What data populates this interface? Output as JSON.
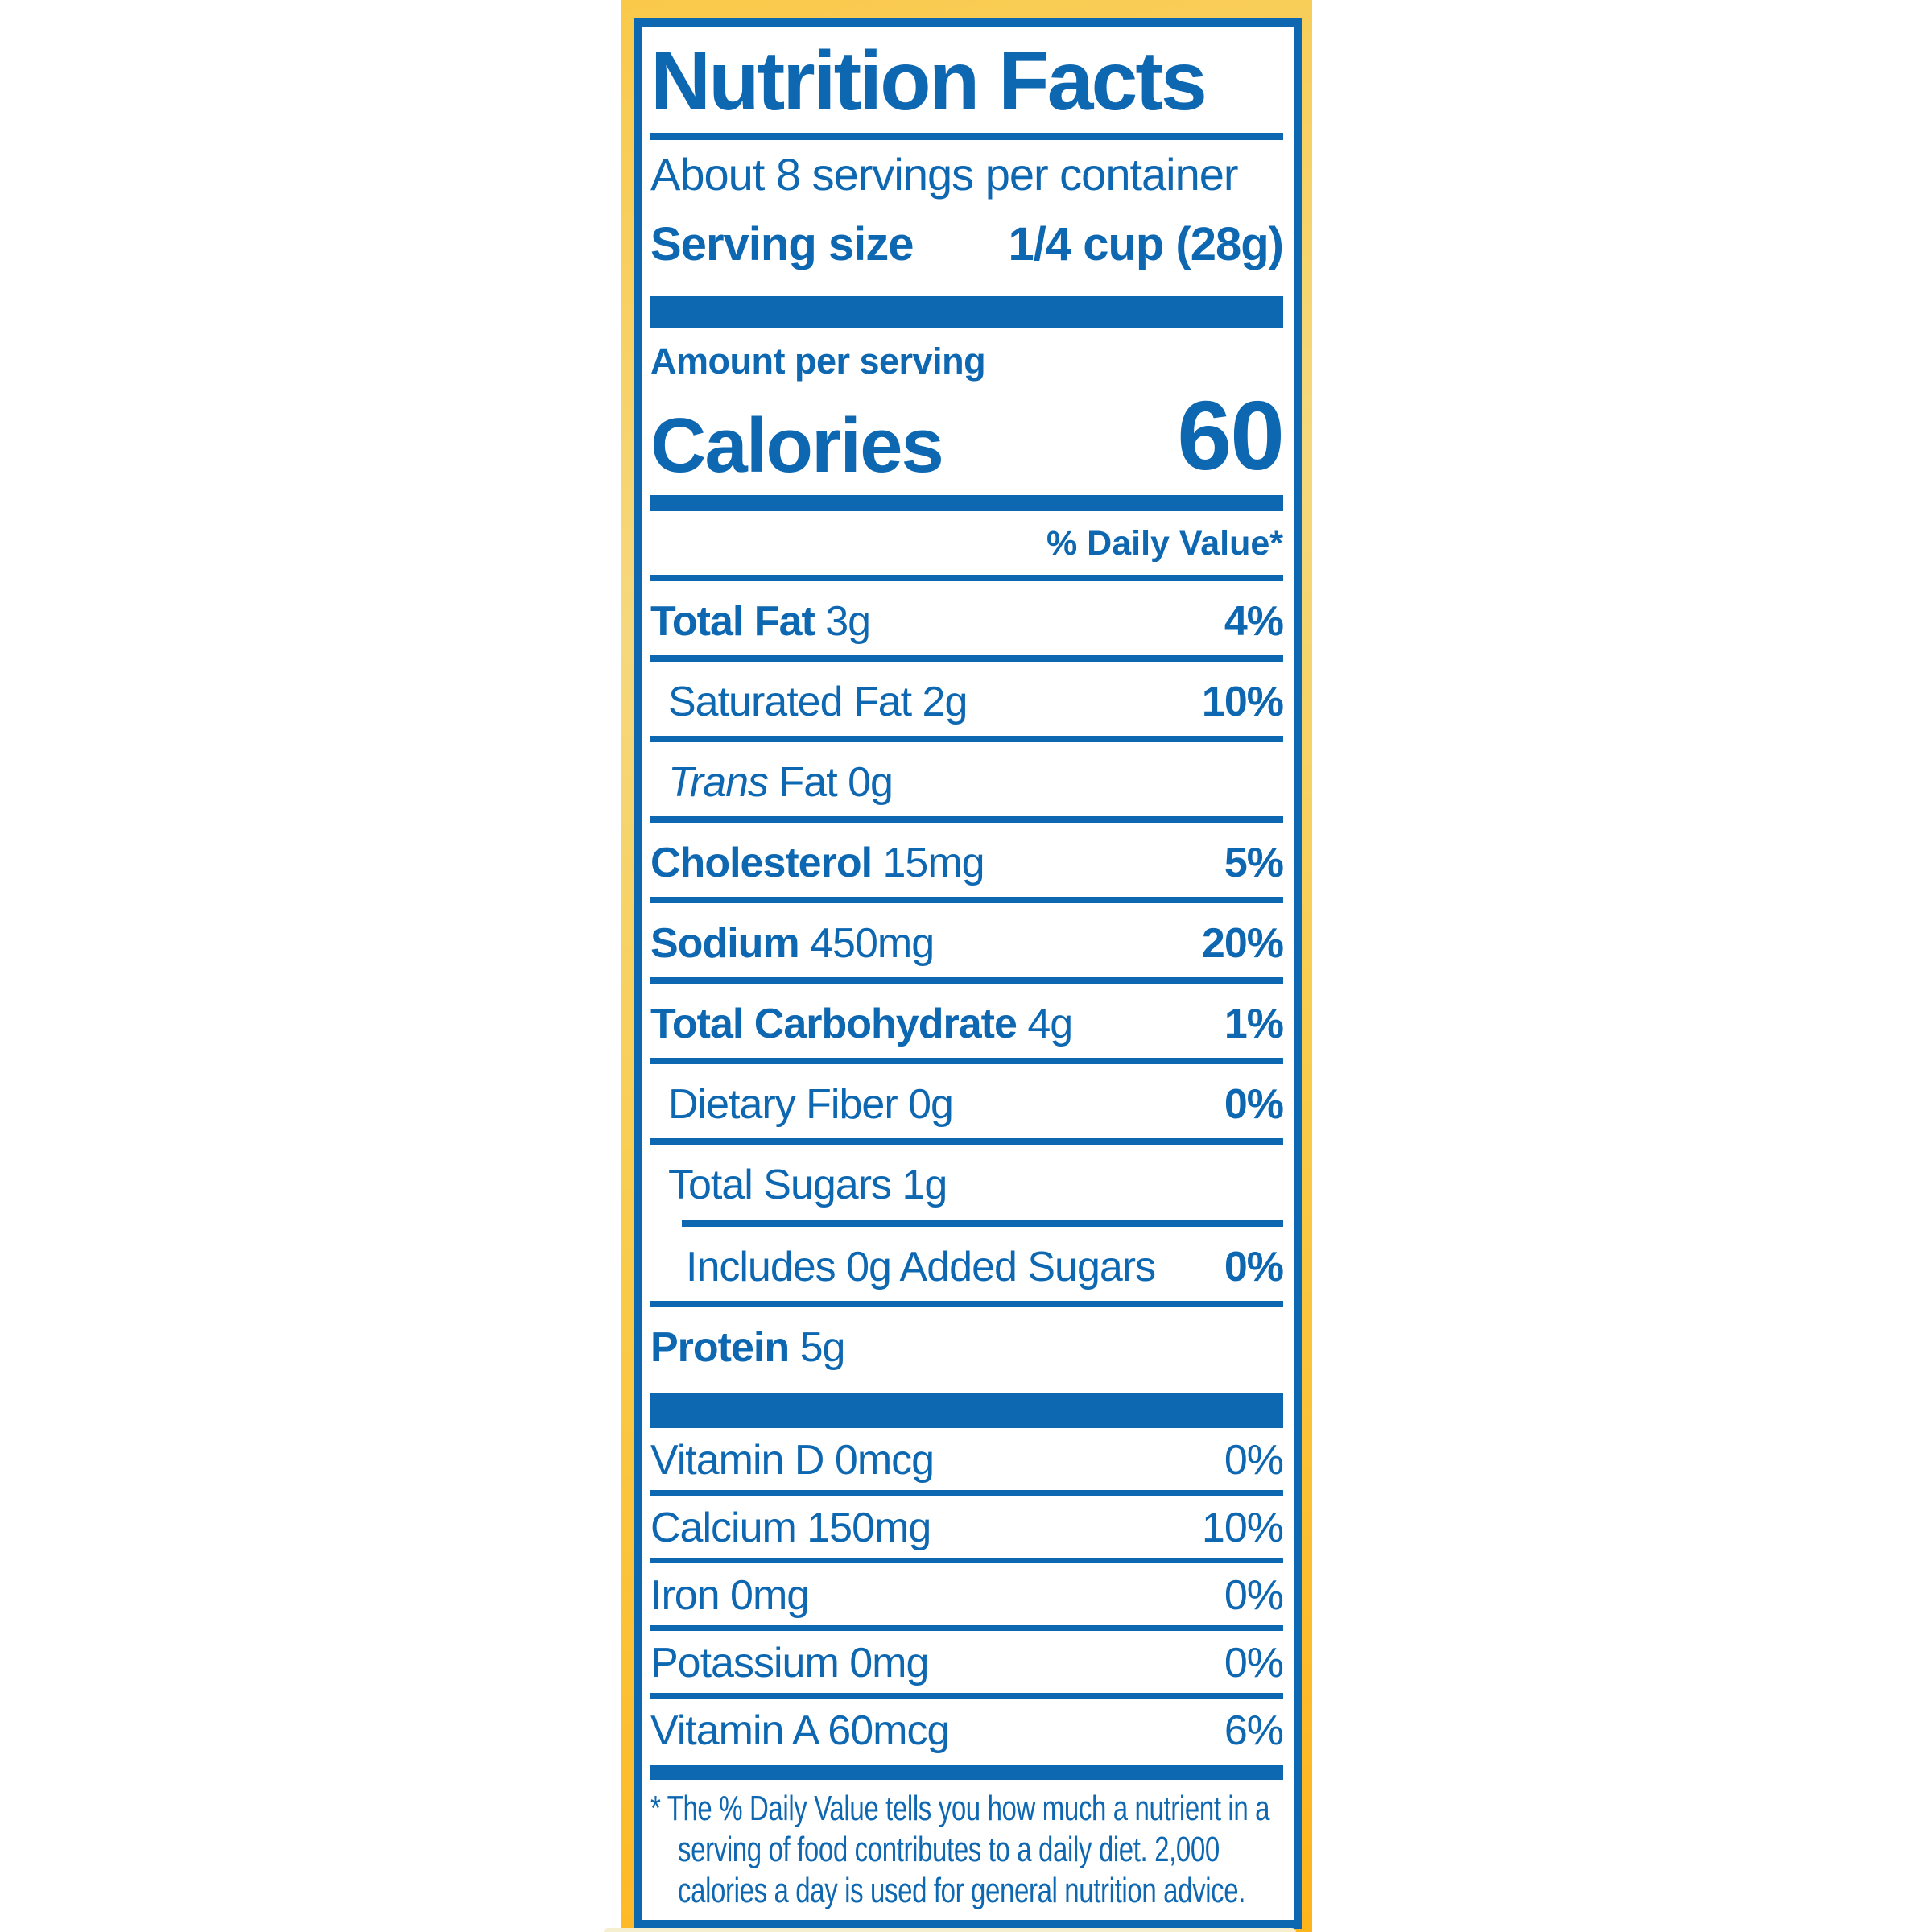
{
  "colors": {
    "blue": "#0E67B1",
    "yellow": "#FAC94A",
    "yellow_light": "#F5D87D",
    "yellow_deep": "#FFB41C",
    "cream": "#F6EFCF",
    "white": "#FFFFFF"
  },
  "label": {
    "title": "Nutrition Facts",
    "servings_per_container": "About 8 servings per container",
    "serving_size_label": "Serving size",
    "serving_size_value": "1/4 cup (28g)",
    "amount_per_serving": "Amount per serving",
    "calories_label": "Calories",
    "calories_value": "60",
    "daily_value_header": "% Daily Value*",
    "nutrients": [
      {
        "name": "Total Fat",
        "amount": "3g",
        "dv": "4%"
      },
      {
        "name": "Saturated Fat",
        "amount": "2g",
        "dv": "10%"
      },
      {
        "name_italic": "Trans",
        "name": "Fat",
        "amount": "0g"
      },
      {
        "name": "Cholesterol",
        "amount": "15mg",
        "dv": "5%"
      },
      {
        "name": "Sodium",
        "amount": "450mg",
        "dv": "20%"
      },
      {
        "name": "Total Carbohydrate",
        "amount": "4g",
        "dv": "1%"
      },
      {
        "name": "Dietary Fiber",
        "amount": "0g",
        "dv": "0%"
      },
      {
        "name": "Total Sugars",
        "amount": "1g"
      },
      {
        "name": "Includes 0g Added Sugars",
        "dv": "0%"
      },
      {
        "name": "Protein",
        "amount": "5g"
      }
    ],
    "vitamins": [
      {
        "name": "Vitamin D 0mcg",
        "dv": "0%"
      },
      {
        "name": "Calcium 150mg",
        "dv": "10%"
      },
      {
        "name": "Iron 0mg",
        "dv": "0%"
      },
      {
        "name": "Potassium 0mg",
        "dv": "0%"
      },
      {
        "name": "Vitamin A 60mcg",
        "dv": "6%"
      }
    ],
    "footnote_lines": [
      "* The % Daily Value tells you how much a nutrient in a",
      "serving of food contributes to a daily diet. 2,000",
      "calories a day is used for general nutrition advice."
    ]
  }
}
